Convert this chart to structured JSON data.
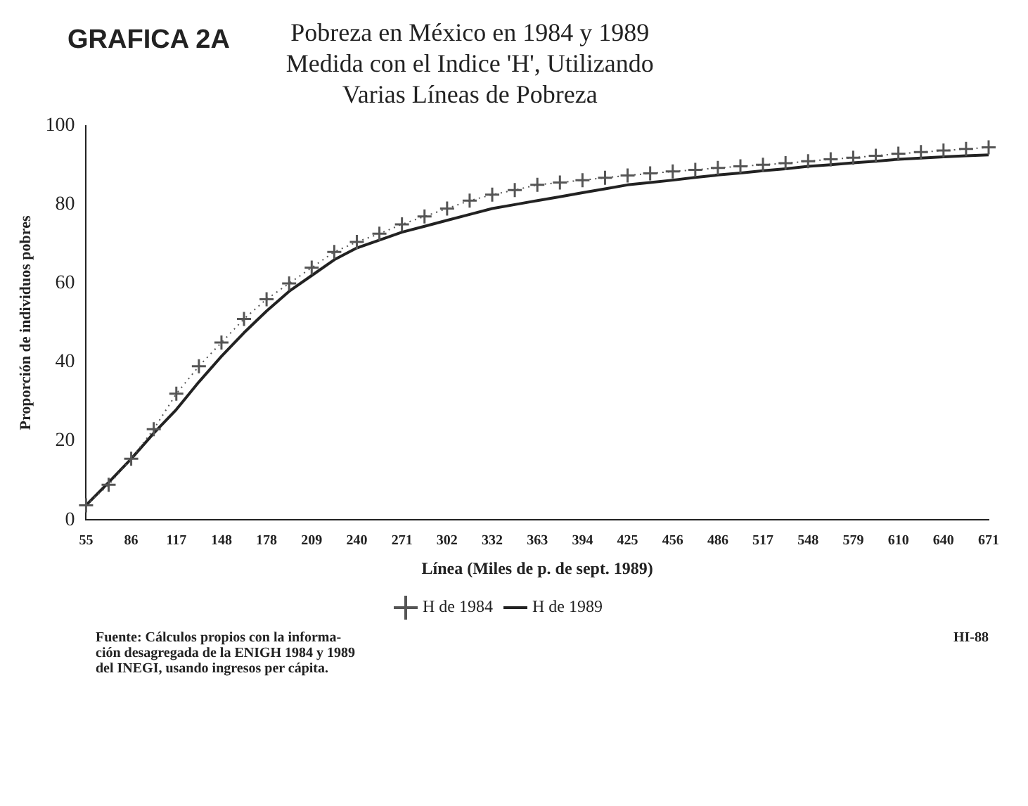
{
  "chart_data": {
    "type": "line",
    "title": "GRAFICA 2A",
    "subtitle": "Pobreza en México en 1984 y 1989\nMedida con el Indice 'H', Utilizando\nVarias Líneas de Pobreza",
    "ylabel": "Proporción de individuos pobres",
    "xlabel": "Línea (Miles de p. de sept. 1989)",
    "annotations": [
      "Fuente: Cálculos propios con la informa-\nción desagregada de la ENIGH 1984 y 1989\ndel INEGI, usando ingresos per cápita.",
      "HI-88"
    ],
    "categories": [
      "55",
      null,
      "86",
      null,
      "117",
      null,
      "148",
      null,
      "178",
      null,
      "209",
      null,
      "240",
      null,
      "271",
      null,
      "302",
      null,
      "332",
      null,
      "363",
      null,
      "394",
      null,
      "425",
      null,
      "456",
      null,
      "486",
      null,
      "517",
      null,
      "548",
      null,
      "579",
      null,
      "610",
      null,
      "640",
      null,
      "671"
    ],
    "series": [
      {
        "name": "H de 1984",
        "color": "#555555",
        "marker": "cross",
        "line_style": "dotted",
        "values": [
          3.7,
          8.9,
          15.5,
          23,
          32,
          39,
          45,
          51,
          56,
          60,
          64,
          68,
          70.5,
          72.6,
          75,
          77,
          79,
          81,
          82.5,
          83.7,
          85,
          85.6,
          86.2,
          86.8,
          87.4,
          87.9,
          88.4,
          88.8,
          89.3,
          89.7,
          90.1,
          90.5,
          91,
          91.5,
          91.9,
          92.4,
          92.9,
          93.3,
          93.7,
          94.1,
          94.5
        ]
      },
      {
        "name": "H de 1989",
        "color": "#222222",
        "marker": "none",
        "line_style": "solid",
        "values": [
          3.7,
          9.5,
          15.5,
          22,
          28,
          35,
          41.5,
          47.5,
          53,
          58,
          62,
          66,
          69,
          71,
          73,
          74.5,
          76,
          77.5,
          79,
          80,
          81,
          82,
          83,
          84,
          85,
          85.6,
          86.2,
          86.9,
          87.5,
          88,
          88.6,
          89.1,
          89.7,
          90.1,
          90.6,
          91,
          91.5,
          91.8,
          92.1,
          92.4,
          92.6
        ]
      }
    ],
    "ylim": [
      0,
      100
    ],
    "yticks": [
      0,
      20,
      40,
      60,
      80,
      100
    ],
    "grid": false,
    "legend": "bottom"
  }
}
